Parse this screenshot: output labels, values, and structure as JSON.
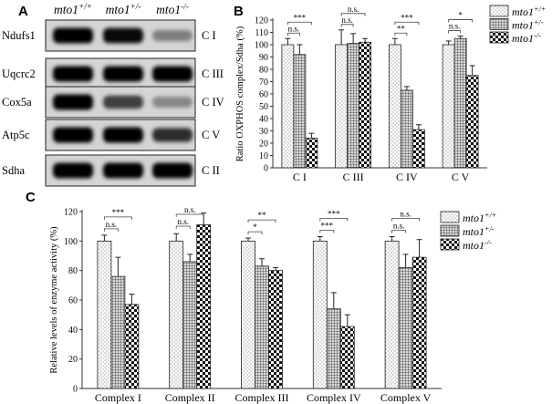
{
  "panel_labels": {
    "a": "A",
    "b": "B",
    "c": "C"
  },
  "blot": {
    "genotypes": [
      {
        "base": "mto1",
        "sup": "+/+"
      },
      {
        "base": "mto1",
        "sup": "+/-"
      },
      {
        "base": "mto1",
        "sup": "-/-"
      }
    ],
    "rows": [
      {
        "protein": "Ndufs1",
        "complex": "C I",
        "intensity": [
          1.0,
          0.95,
          0.3
        ]
      },
      {
        "protein": "Uqcrc2",
        "complex": "C III",
        "intensity": [
          1.0,
          1.0,
          1.0
        ]
      },
      {
        "protein": "Cox5a",
        "complex": "C IV",
        "intensity": [
          1.0,
          0.65,
          0.25
        ]
      },
      {
        "protein": "Atp5c",
        "complex": "C V",
        "intensity": [
          1.0,
          1.0,
          0.75
        ]
      },
      {
        "protein": "Sdha",
        "complex": "C II",
        "intensity": [
          1.0,
          1.0,
          1.0
        ]
      }
    ]
  },
  "chart_data": [
    {
      "id": "B",
      "type": "bar",
      "ylabel": "Ratio OXPHOS complex/Sdha (%)",
      "ylim": [
        0,
        120
      ],
      "yticks": [
        0,
        10,
        20,
        30,
        40,
        50,
        60,
        70,
        80,
        90,
        100,
        110,
        120
      ],
      "categories": [
        "C I",
        "C III",
        "C IV",
        "C V"
      ],
      "series": [
        {
          "name": "mto1",
          "sup": "+/+",
          "pattern": "dots",
          "values": [
            100,
            100,
            100,
            100
          ],
          "errors": [
            5,
            12,
            5,
            3
          ]
        },
        {
          "name": "mto1",
          "sup": "+/-",
          "pattern": "grid",
          "values": [
            92,
            101,
            63,
            105
          ],
          "errors": [
            8,
            8,
            3,
            2
          ]
        },
        {
          "name": "mto1",
          "sup": "-/-",
          "pattern": "checker",
          "values": [
            24,
            102,
            31,
            75
          ],
          "errors": [
            4,
            3,
            4,
            8
          ]
        }
      ],
      "legend_position": "top-right",
      "significance": [
        {
          "category": 0,
          "pairs": [
            [
              "0",
              "1",
              "n.s."
            ],
            [
              "0",
              "2",
              "***"
            ]
          ]
        },
        {
          "category": 1,
          "pairs": [
            [
              "0",
              "1",
              "n.s."
            ],
            [
              "0",
              "2",
              "n.s."
            ]
          ]
        },
        {
          "category": 2,
          "pairs": [
            [
              "0",
              "1",
              "**"
            ],
            [
              "0",
              "2",
              "***"
            ]
          ]
        },
        {
          "category": 3,
          "pairs": [
            [
              "0",
              "1",
              "n.s."
            ],
            [
              "0",
              "2",
              "*"
            ]
          ]
        }
      ]
    },
    {
      "id": "C",
      "type": "bar",
      "ylabel": "Relative levels of enzyme activity (%)",
      "ylim": [
        0,
        120
      ],
      "yticks": [
        0,
        20,
        40,
        60,
        80,
        100,
        120
      ],
      "categories": [
        "Complex I",
        "Complex II",
        "Complex III",
        "Complex IV",
        "Complex V"
      ],
      "series": [
        {
          "name": "mto1",
          "sup": "+/+",
          "pattern": "dots",
          "values": [
            100,
            100,
            100,
            100,
            100
          ],
          "errors": [
            4,
            5,
            2,
            3,
            3
          ]
        },
        {
          "name": "mto1",
          "sup": "+/-",
          "pattern": "grid",
          "values": [
            76,
            86,
            83,
            54,
            82
          ],
          "errors": [
            13,
            5,
            5,
            11,
            9
          ]
        },
        {
          "name": "mto1",
          "sup": "-/-",
          "pattern": "checker",
          "values": [
            57,
            111,
            80,
            42,
            89
          ],
          "errors": [
            7,
            8,
            2,
            8,
            12
          ]
        }
      ],
      "legend_position": "top-right",
      "significance": [
        {
          "category": 0,
          "pairs": [
            [
              "0",
              "1",
              "n.s."
            ],
            [
              "0",
              "2",
              "***"
            ]
          ]
        },
        {
          "category": 1,
          "pairs": [
            [
              "0",
              "1",
              "n.s."
            ],
            [
              "0",
              "2",
              "n.s."
            ]
          ]
        },
        {
          "category": 2,
          "pairs": [
            [
              "0",
              "1",
              "*"
            ],
            [
              "0",
              "2",
              "**"
            ]
          ]
        },
        {
          "category": 3,
          "pairs": [
            [
              "0",
              "1",
              "***"
            ],
            [
              "0",
              "2",
              "***"
            ]
          ]
        },
        {
          "category": 4,
          "pairs": [
            [
              "0",
              "1",
              "n.s."
            ],
            [
              "0",
              "2",
              "n.s."
            ]
          ]
        }
      ]
    }
  ]
}
